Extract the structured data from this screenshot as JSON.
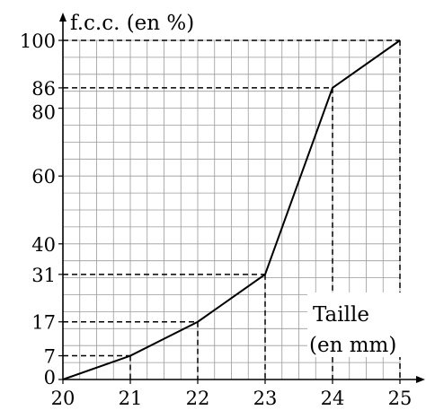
{
  "chart_data": {
    "type": "line",
    "ylabel": "f.c.c. (en %)",
    "xlabel_line1": "Taille",
    "xlabel_line2": "(en mm)",
    "x": [
      20,
      21,
      22,
      23,
      24,
      25
    ],
    "y": [
      0,
      7,
      17,
      31,
      86,
      100
    ],
    "xlim": [
      20,
      25
    ],
    "ylim": [
      0,
      100
    ],
    "x_ticks": [
      20,
      21,
      22,
      23,
      24,
      25
    ],
    "y_ticks": [
      0,
      7,
      17,
      31,
      40,
      60,
      80,
      86,
      100
    ],
    "grid": true,
    "grid_x_step": 0.25,
    "grid_y_step": 5,
    "dashed_guides": [
      {
        "x": 21,
        "y": 7
      },
      {
        "x": 22,
        "y": 17
      },
      {
        "x": 23,
        "y": 31
      },
      {
        "x": 24,
        "y": 86
      },
      {
        "x": 25,
        "y": 100
      }
    ]
  }
}
